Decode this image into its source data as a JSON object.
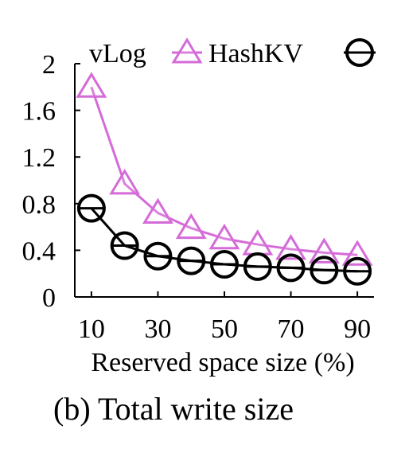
{
  "chart_data": {
    "type": "line",
    "caption": "(b) Total write size",
    "xlabel": "Reserved space size (%)",
    "ylabel": "",
    "x": [
      10,
      20,
      30,
      40,
      50,
      60,
      70,
      80,
      90
    ],
    "x_tick_labels": [
      "10",
      "30",
      "50",
      "70",
      "90"
    ],
    "x_ticks": [
      10,
      30,
      50,
      70,
      90
    ],
    "xlim": [
      5,
      95
    ],
    "ylim": [
      0,
      2
    ],
    "y_ticks": [
      0,
      0.4,
      0.8,
      1.2,
      1.6,
      2
    ],
    "y_tick_labels": [
      "0",
      "0.4",
      "0.8",
      "1.2",
      "1.6",
      "2"
    ],
    "grid": false,
    "legend_placement": "top",
    "series": [
      {
        "name": "vLog",
        "marker": "triangle",
        "color": "#d56bd8",
        "values": [
          1.8,
          0.97,
          0.72,
          0.59,
          0.5,
          0.45,
          0.41,
          0.38,
          0.36
        ]
      },
      {
        "name": "HashKV",
        "marker": "circle-with-line",
        "color": "#000000",
        "values": [
          0.76,
          0.44,
          0.35,
          0.31,
          0.28,
          0.26,
          0.25,
          0.23,
          0.22
        ]
      }
    ]
  }
}
